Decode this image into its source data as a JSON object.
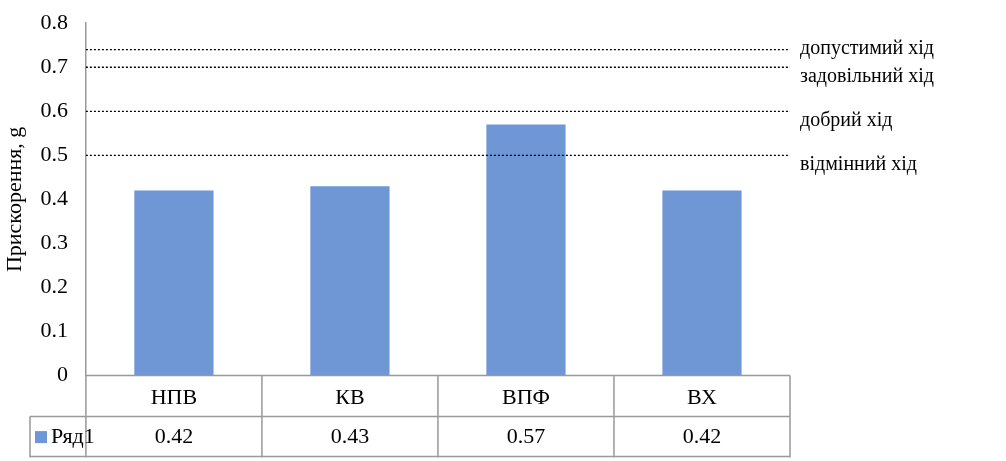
{
  "chart_data": {
    "type": "bar",
    "ylabel": "Прискорення, g",
    "categories": [
      "НПВ",
      "КВ",
      "ВПФ",
      "ВХ"
    ],
    "series": [
      {
        "name": "Ряд1",
        "color": "#6f97d6",
        "values": [
          0.42,
          0.43,
          0.57,
          0.42
        ]
      }
    ],
    "ylim": [
      0,
      0.8
    ],
    "yticks": [
      0,
      0.1,
      0.2,
      0.3,
      0.4,
      0.5,
      0.6,
      0.7,
      0.8
    ],
    "grid": false,
    "legend": "bottom",
    "data_labels": true,
    "ref_lines": [
      {
        "axis": "y",
        "value": 0.74,
        "label": "допустимий хід",
        "color": "#000000",
        "line_style": "dotted"
      },
      {
        "axis": "y",
        "value": 0.7,
        "label": "задовільний хід",
        "color": "#000000",
        "line_style": "dotted"
      },
      {
        "axis": "y",
        "value": 0.6,
        "label": "добрий хід",
        "color": "#000000",
        "line_style": "dotted"
      },
      {
        "axis": "y",
        "value": 0.5,
        "label": "відмінний хід",
        "color": "#000000",
        "line_style": "dotted"
      }
    ]
  }
}
